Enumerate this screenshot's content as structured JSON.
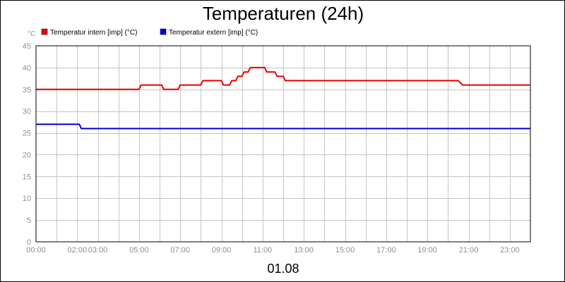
{
  "chart_data": {
    "type": "line",
    "title": "Temperaturen (24h)",
    "ylabel": "°C",
    "xlabel": "01.08",
    "ylim": [
      0,
      45
    ],
    "yticks": [
      0,
      5,
      10,
      15,
      20,
      25,
      30,
      35,
      40,
      45
    ],
    "xlim": [
      0,
      24
    ],
    "xticks": [
      {
        "h": 0,
        "label": "00:00"
      },
      {
        "h": 2,
        "label": "02:00"
      },
      {
        "h": 3,
        "label": "03:00"
      },
      {
        "h": 5,
        "label": "05:00"
      },
      {
        "h": 7,
        "label": "07:00"
      },
      {
        "h": 9,
        "label": "09:00"
      },
      {
        "h": 11,
        "label": "11:00"
      },
      {
        "h": 13,
        "label": "13:00"
      },
      {
        "h": 15,
        "label": "15:00"
      },
      {
        "h": 17,
        "label": "17:00"
      },
      {
        "h": 19,
        "label": "19:00"
      },
      {
        "h": 21,
        "label": "21:00"
      },
      {
        "h": 23,
        "label": "23:00"
      }
    ],
    "grid": true,
    "legend_position": "top-left",
    "series": [
      {
        "name": "Temperatur intern [imp] (°C)",
        "color": "#ee0000",
        "x": [
          0,
          5.0,
          5.1,
          6.1,
          6.2,
          6.9,
          7.0,
          8.0,
          8.1,
          9.0,
          9.1,
          9.4,
          9.5,
          9.7,
          9.8,
          10.0,
          10.1,
          10.3,
          10.4,
          10.6,
          10.7,
          11.1,
          11.2,
          11.6,
          11.7,
          12.0,
          12.1,
          20.5,
          20.7,
          24
        ],
        "y": [
          35,
          35,
          36,
          36,
          35,
          35,
          36,
          36,
          37,
          37,
          36,
          36,
          37,
          37,
          38,
          38,
          39,
          39,
          40,
          40,
          40,
          40,
          39,
          39,
          38,
          38,
          37,
          37,
          36,
          36
        ]
      },
      {
        "name": "Temperatur extern [imp] (°C)",
        "color": "#0000dd",
        "x": [
          0,
          2.1,
          2.2,
          24
        ],
        "y": [
          27,
          27,
          26,
          26
        ]
      }
    ]
  }
}
